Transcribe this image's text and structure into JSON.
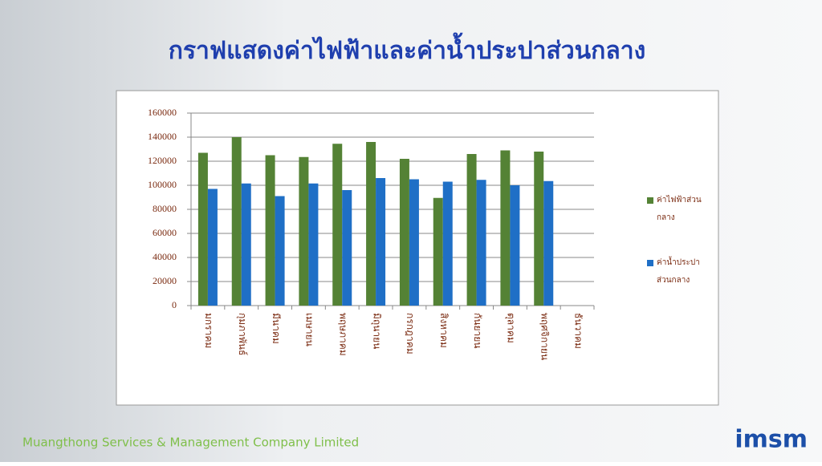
{
  "title": "กราฟแสดงค่าไฟฟ้าและค่าน้ำประปาส่วนกลาง",
  "footer": "Muangthong Services & Management Company Limited",
  "logo": "imsm",
  "chart_data": {
    "type": "bar",
    "categories": [
      "มกราคม",
      "กุมภาพันธ์",
      "มีนาคม",
      "เมษายน",
      "พฤษภาคม",
      "มิถุนายน",
      "กรกฎาคม",
      "สิงหาคม",
      "กันยายน",
      "ตุลาคม",
      "พฤศจิกายน",
      "ธันวาคม"
    ],
    "series": [
      {
        "name": "ค่าไฟฟ้าส่วนกลาง",
        "color": "#548235",
        "values": [
          127000,
          140000,
          125000,
          123500,
          134500,
          136000,
          122000,
          89500,
          126000,
          129000,
          128000,
          null
        ]
      },
      {
        "name": "ค่าน้ำประปาส่วนกลาง",
        "color": "#1f6fc6",
        "values": [
          97000,
          101500,
          91000,
          101500,
          96000,
          106000,
          105000,
          103000,
          104500,
          100000,
          103500,
          null
        ]
      }
    ],
    "ylim": [
      0,
      160000
    ],
    "yticks": [
      0,
      20000,
      40000,
      60000,
      80000,
      100000,
      120000,
      140000,
      160000
    ],
    "grid": true,
    "legend": "right"
  }
}
